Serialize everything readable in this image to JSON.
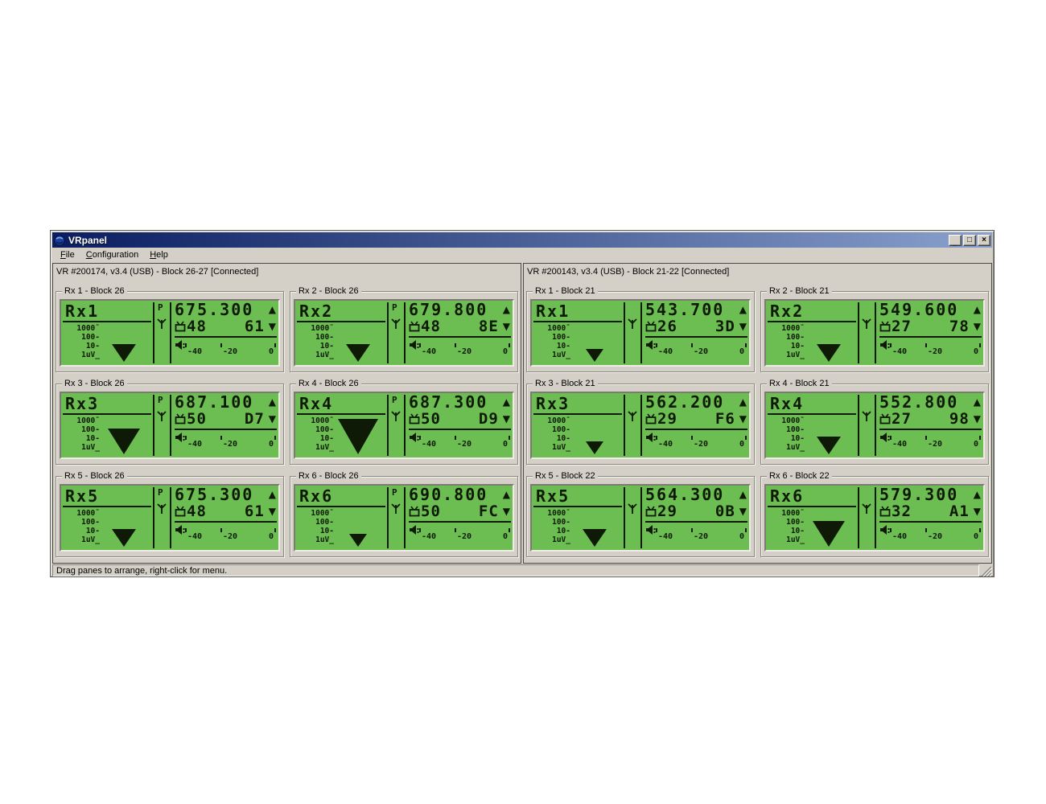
{
  "window": {
    "title": "VRpanel",
    "controls": {
      "minimize": "_",
      "maximize": "□",
      "close": "×"
    }
  },
  "menu": {
    "items": [
      {
        "label": "File",
        "accel_index": 0
      },
      {
        "label": "Configuration",
        "accel_index": 0
      },
      {
        "label": "Help",
        "accel_index": 0
      }
    ]
  },
  "status_bar": {
    "text": "Drag panes to arrange, right-click for menu."
  },
  "lcd": {
    "pilot_label": "P",
    "up_arrow": "▲",
    "down_arrow": "▼",
    "scale_labels": [
      "1000¯",
      "100-",
      "10-",
      "1uV_"
    ],
    "audio_scale": [
      "-40",
      "-20",
      "0"
    ],
    "colors": {
      "lcd_green": "#6cbd52",
      "lcd_text": "#0e1a06",
      "titlebar_left": "#091d60",
      "titlebar_right": "#8aa0cc",
      "chrome": "#d4d0c8"
    }
  },
  "groups": [
    {
      "header": "VR #200174, v3.4 (USB) - Block 26-27 [Connected]",
      "panels": [
        {
          "title": "Rx 1 - Block 26",
          "rx": "Rx1",
          "freq": "675.300",
          "channel": "48",
          "hex": "61",
          "signal": 2,
          "pilot": true
        },
        {
          "title": "Rx 2 - Block 26",
          "rx": "Rx2",
          "freq": "679.800",
          "channel": "48",
          "hex": "8E",
          "signal": 2,
          "pilot": true
        },
        {
          "title": "Rx 3 - Block 26",
          "rx": "Rx3",
          "freq": "687.100",
          "channel": "50",
          "hex": "D7",
          "signal": 3,
          "pilot": true
        },
        {
          "title": "Rx 4 - Block 26",
          "rx": "Rx4",
          "freq": "687.300",
          "channel": "50",
          "hex": "D9",
          "signal": 4,
          "pilot": true
        },
        {
          "title": "Rx 5 - Block 26",
          "rx": "Rx5",
          "freq": "675.300",
          "channel": "48",
          "hex": "61",
          "signal": 2,
          "pilot": true
        },
        {
          "title": "Rx 6 - Block 26",
          "rx": "Rx6",
          "freq": "690.800",
          "channel": "50",
          "hex": "FC",
          "signal": 1,
          "pilot": true
        }
      ]
    },
    {
      "header": "VR #200143, v3.4 (USB) - Block 21-22 [Connected]",
      "panels": [
        {
          "title": "Rx 1 - Block 21",
          "rx": "Rx1",
          "freq": "543.700",
          "channel": "26",
          "hex": "3D",
          "signal": 1,
          "pilot": false
        },
        {
          "title": "Rx 2 - Block 21",
          "rx": "Rx2",
          "freq": "549.600",
          "channel": "27",
          "hex": "78",
          "signal": 2,
          "pilot": false
        },
        {
          "title": "Rx 3 - Block 21",
          "rx": "Rx3",
          "freq": "562.200",
          "channel": "29",
          "hex": "F6",
          "signal": 1,
          "pilot": false
        },
        {
          "title": "Rx 4 - Block 21",
          "rx": "Rx4",
          "freq": "552.800",
          "channel": "27",
          "hex": "98",
          "signal": 2,
          "pilot": false
        },
        {
          "title": "Rx 5 - Block 22",
          "rx": "Rx5",
          "freq": "564.300",
          "channel": "29",
          "hex": "0B",
          "signal": 2,
          "pilot": false
        },
        {
          "title": "Rx 6 - Block 22",
          "rx": "Rx6",
          "freq": "579.300",
          "channel": "32",
          "hex": "A1",
          "signal": 3,
          "pilot": false
        }
      ]
    }
  ]
}
